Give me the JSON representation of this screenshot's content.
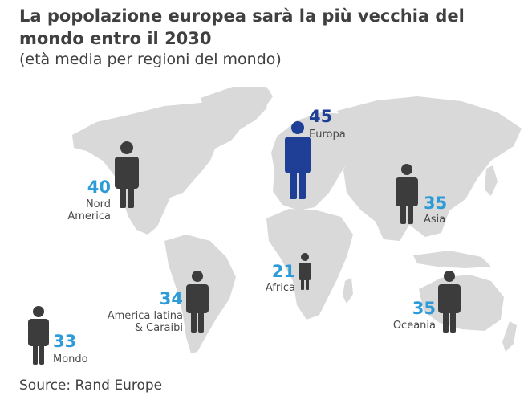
{
  "header": {
    "title": "La popolazione europea sarà la più vecchia del mondo entro il 2030",
    "subtitle": "(età media per regioni del mondo)"
  },
  "colors": {
    "map": "#d9d9d9",
    "figure_default": "#3c3c3c",
    "figure_highlight": "#1e3f95",
    "value_default": "#2d9bd8",
    "value_highlight": "#1e3f95"
  },
  "regions": [
    {
      "id": "europa",
      "value": "45",
      "label": "Europa",
      "highlight": true
    },
    {
      "id": "nord-america",
      "value": "40",
      "label": "Nord America",
      "label_lines": [
        "Nord",
        "America"
      ],
      "highlight": false
    },
    {
      "id": "asia",
      "value": "35",
      "label": "Asia",
      "highlight": false
    },
    {
      "id": "africa",
      "value": "21",
      "label": "Africa",
      "highlight": false
    },
    {
      "id": "america-latina",
      "value": "34",
      "label": "America latina & Caraibi",
      "label_lines": [
        "America latina",
        "& Caraibi"
      ],
      "highlight": false
    },
    {
      "id": "oceania",
      "value": "35",
      "label": "Oceania",
      "highlight": false
    },
    {
      "id": "mondo",
      "value": "33",
      "label": "Mondo",
      "highlight": false
    }
  ],
  "footer": {
    "source": "Source: Rand Europe"
  }
}
